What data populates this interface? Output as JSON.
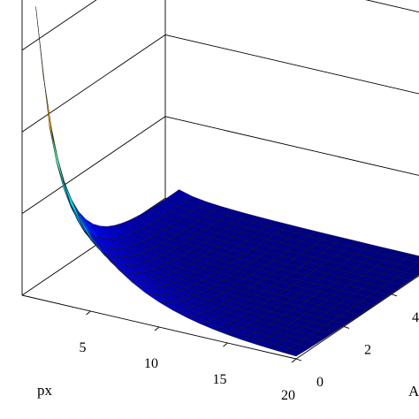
{
  "chart_data": {
    "type": "surface",
    "title": "",
    "colormap": "jet",
    "x_axis": {
      "label": "px",
      "ticks": [
        5,
        10,
        15,
        20
      ],
      "range": [
        1,
        20
      ]
    },
    "y_axis": {
      "label": "A",
      "ticks": [
        0,
        2,
        4
      ],
      "range": [
        0,
        6
      ]
    },
    "z_axis": {
      "label": "",
      "ticks": [],
      "range": [
        0,
        1
      ]
    },
    "grid_resolution": {
      "x_samples": 20,
      "y_samples": 21
    },
    "surface_description": "values fall off quickly with px and rise as A approaches 0",
    "peak": {
      "px": 1,
      "A": 0,
      "z": 1.0
    },
    "colors": {
      "low": "#0000a0",
      "high": "#a00000"
    }
  }
}
